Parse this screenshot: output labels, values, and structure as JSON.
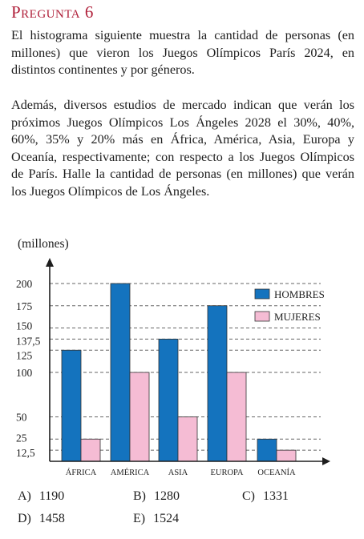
{
  "question": {
    "heading": "Pregunta 6",
    "paragraph1": "El histograma siguiente muestra la cantidad de personas (en millones) que vieron los Juegos Olímpicos París 2024, en distintos continentes y por géneros.",
    "paragraph2": "Además, diversos estudios de mercado indican que verán los próximos Juegos Olímpicos Los Ángeles 2028 el 30%, 40%, 60%, 35% y 20% más en África, América, Asia, Europa y Oceanía, respectivamente; con respecto a los Juegos Olímpicos de París. Halle la cantidad de personas (en millones) que verán los Juegos Olímpicos de Los Ángeles."
  },
  "chart_data": {
    "type": "bar",
    "ylabel": "(millones)",
    "categories": [
      "ÁFRICA",
      "AMÉRICA",
      "ASIA",
      "EUROPA",
      "OCEANÍA"
    ],
    "series": [
      {
        "name": "HOMBRES",
        "color": "#1473be",
        "values": [
          125,
          200,
          137.5,
          175,
          25
        ]
      },
      {
        "name": "MUJERES",
        "color": "#f5bcd4",
        "values": [
          25,
          100,
          50,
          100,
          12.5
        ]
      }
    ],
    "yticks": [
      {
        "value": 200,
        "label": "200"
      },
      {
        "value": 175,
        "label": "175"
      },
      {
        "value": 150,
        "label": "150"
      },
      {
        "value": 137.5,
        "label": "137,5"
      },
      {
        "value": 125,
        "label": "125"
      },
      {
        "value": 100,
        "label": "100"
      },
      {
        "value": 50,
        "label": "50"
      },
      {
        "value": 25,
        "label": "25"
      },
      {
        "value": 12.5,
        "label": "12,5"
      }
    ],
    "ylim": [
      0,
      200
    ],
    "grid": "dashed",
    "legend": "top-right"
  },
  "options": [
    {
      "letter": "A)",
      "value": "1190"
    },
    {
      "letter": "B)",
      "value": "1280"
    },
    {
      "letter": "C)",
      "value": "1331"
    },
    {
      "letter": "D)",
      "value": "1458"
    },
    {
      "letter": "E)",
      "value": "1524"
    }
  ]
}
